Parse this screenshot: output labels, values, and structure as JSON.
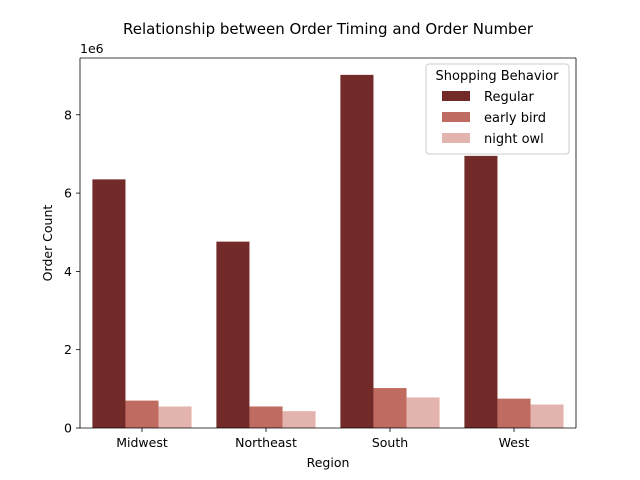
{
  "chart_data": {
    "type": "bar",
    "title": "Relationship between Order Timing and Order Number",
    "xlabel": "Region",
    "ylabel": "Order Count",
    "y_multiplier_label": "1e6",
    "ylim": [
      0,
      9.45
    ],
    "y_ticks": [
      0,
      2,
      4,
      6,
      8
    ],
    "categories": [
      "Midwest",
      "Northeast",
      "South",
      "West"
    ],
    "series": [
      {
        "name": "Regular",
        "color": "#722b28",
        "values": [
          6.35,
          4.76,
          9.02,
          6.95
        ]
      },
      {
        "name": "early bird",
        "color": "#c06b62",
        "values": [
          0.7,
          0.55,
          1.02,
          0.75
        ]
      },
      {
        "name": "night owl",
        "color": "#e3b4ae",
        "values": [
          0.55,
          0.43,
          0.78,
          0.6
        ]
      }
    ],
    "legend": {
      "title": "Shopping Behavior",
      "position": "top-right"
    },
    "grid": false
  }
}
